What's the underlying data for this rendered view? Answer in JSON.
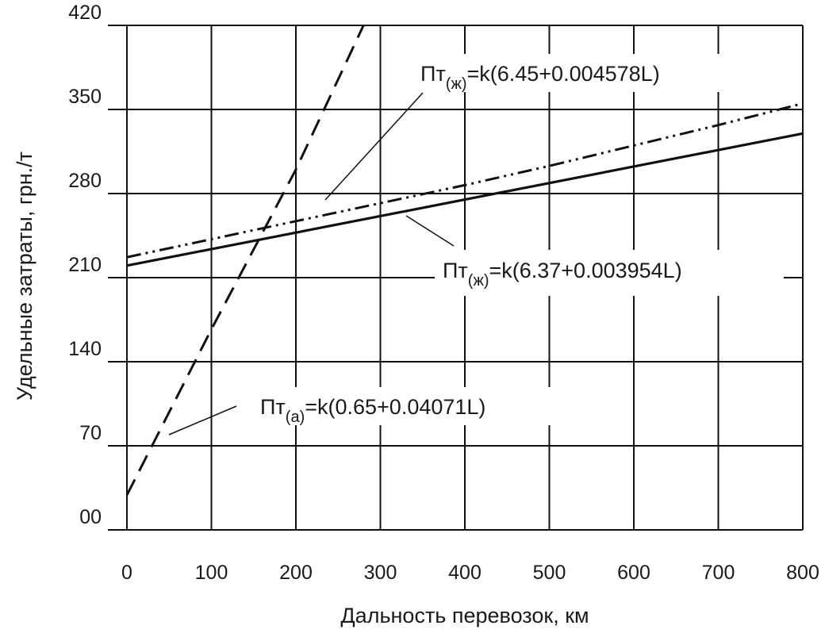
{
  "chart_data": {
    "type": "line",
    "title": "",
    "xlabel": "Дальность перевозок, км",
    "ylabel": "Удельные затраты, грн./т",
    "xlim": [
      0,
      800
    ],
    "ylim": [
      0,
      420
    ],
    "x_ticks": [
      "0",
      "100",
      "200",
      "300",
      "400",
      "500",
      "600",
      "700",
      "800"
    ],
    "y_ticks": [
      "00",
      "70",
      "140",
      "210",
      "280",
      "350",
      "420"
    ],
    "y_tick_values": [
      0,
      70,
      140,
      210,
      280,
      350,
      420
    ],
    "grid": true,
    "series": [
      {
        "line_style": "dashed",
        "equation": {
          "prefix": "Пт",
          "subscript": "(а)",
          "suffix": "=k(0.65+0.04071L)"
        },
        "x": [
          0,
          100,
          200,
          280
        ],
        "y": [
          29,
          167,
          300,
          420
        ]
      },
      {
        "line_style": "dash-dot-dot",
        "equation": {
          "prefix": "Пт",
          "subscript": "(ж)",
          "suffix": "=k(6.45+0.004578L)"
        },
        "x": [
          0,
          100,
          200,
          300,
          400,
          500,
          600,
          700,
          800
        ],
        "y": [
          227,
          242,
          257,
          272,
          287,
          303,
          320,
          337,
          355
        ]
      },
      {
        "line_style": "solid",
        "equation": {
          "prefix": "Пт",
          "subscript": "(ж)",
          "suffix": "=k(6.37+0.003954L)"
        },
        "x": [
          0,
          800
        ],
        "y": [
          220,
          330
        ]
      }
    ]
  }
}
